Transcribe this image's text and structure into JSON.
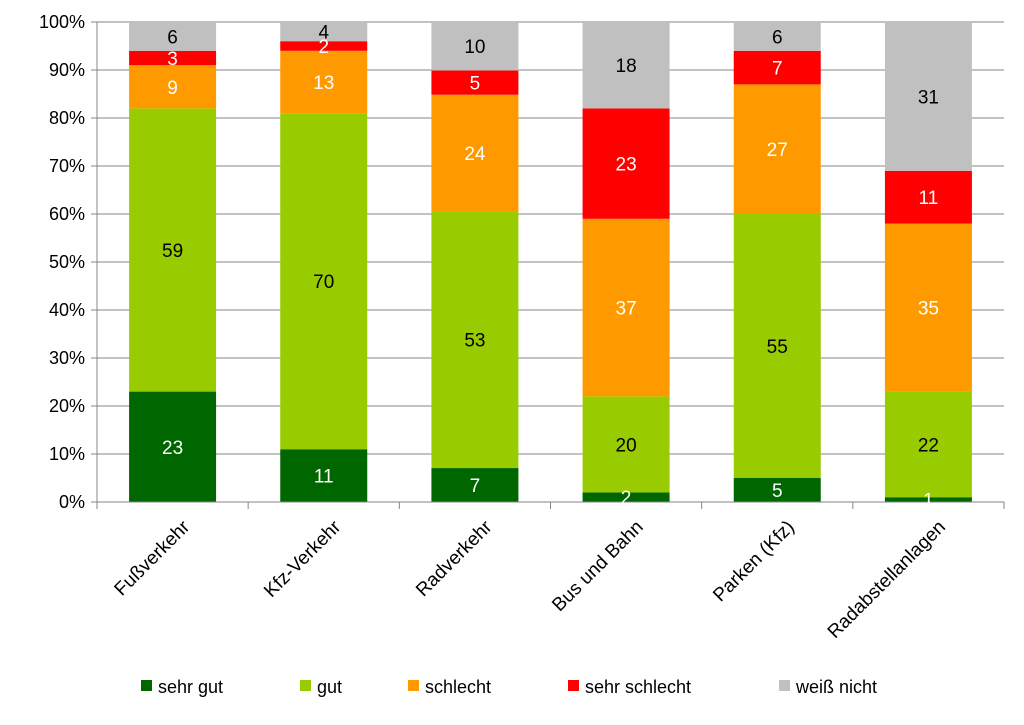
{
  "chart_data": {
    "type": "bar",
    "stacked": true,
    "percent": true,
    "title": "",
    "xlabel": "",
    "ylabel": "",
    "ylim": [
      0,
      100
    ],
    "yticks": [
      "0%",
      "10%",
      "20%",
      "30%",
      "40%",
      "50%",
      "60%",
      "70%",
      "80%",
      "90%",
      "100%"
    ],
    "grid": true,
    "legend_position": "bottom",
    "categories": [
      "Fußverkehr",
      "Kfz-Verkehr",
      "Radverkehr",
      "Bus und Bahn",
      "Parken (Kfz)",
      "Radabstellanlagen"
    ],
    "series": [
      {
        "name": "sehr gut",
        "color": "#006600",
        "label_color": "#ffffff",
        "values": [
          23,
          11,
          7,
          2,
          5,
          1
        ]
      },
      {
        "name": "gut",
        "color": "#99cc00",
        "label_color": "#000000",
        "values": [
          59,
          70,
          53,
          20,
          55,
          22
        ]
      },
      {
        "name": "schlecht",
        "color": "#ff9900",
        "label_color": "#ffffff",
        "values": [
          9,
          13,
          24,
          37,
          27,
          35
        ]
      },
      {
        "name": "sehr schlecht",
        "color": "#ff0000",
        "label_color": "#ffffff",
        "values": [
          3,
          2,
          5,
          23,
          7,
          11
        ]
      },
      {
        "name": "weiß nicht",
        "color": "#c0c0c0",
        "label_color": "#000000",
        "values": [
          6,
          4,
          10,
          18,
          6,
          31
        ]
      }
    ]
  }
}
